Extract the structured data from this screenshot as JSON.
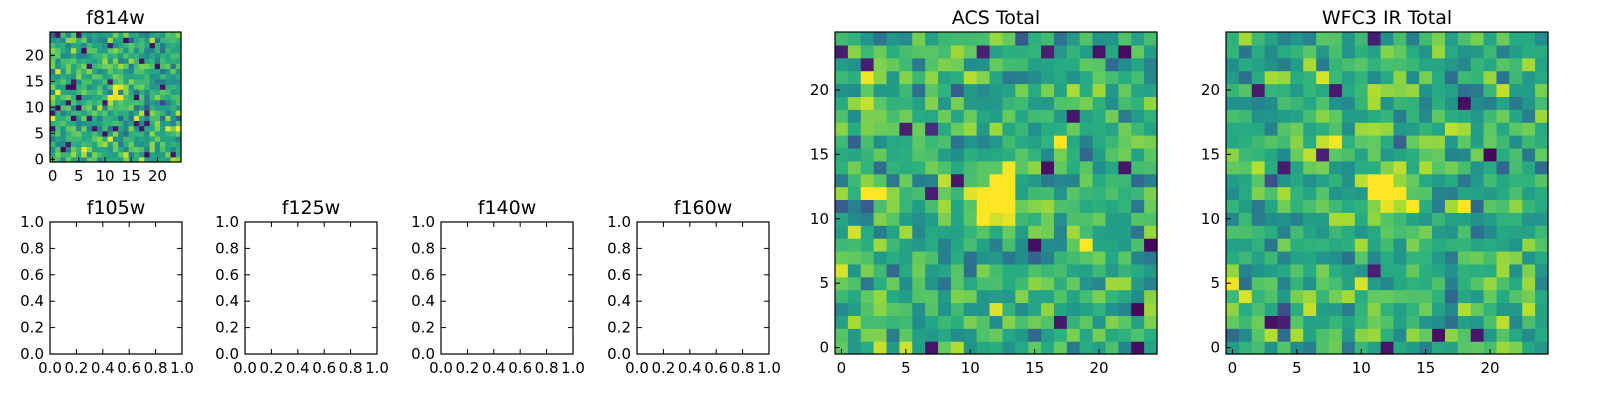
{
  "colors": {
    "background": "#ffffff",
    "axes": "#000000",
    "colormap": [
      "#440154",
      "#3b528b",
      "#21918c",
      "#5ec962",
      "#fde725"
    ]
  },
  "chart_data": [
    {
      "id": "f814w",
      "type": "heatmap",
      "title": "f814w",
      "colormap": "viridis",
      "grid": false,
      "xlim": [
        -0.5,
        24.5
      ],
      "ylim": [
        -0.5,
        24.5
      ],
      "xticks": [
        0,
        5,
        10,
        15,
        20
      ],
      "yticks": [
        0,
        5,
        10,
        15,
        20
      ],
      "size": [
        25,
        25
      ],
      "description": "noise image with bright compact source centered near (12, 12)"
    },
    {
      "id": "f105w",
      "type": "empty",
      "title": "f105w",
      "xlim": [
        0,
        1
      ],
      "ylim": [
        0,
        1
      ],
      "xticks": [
        "0.0",
        "0.2",
        "0.4",
        "0.6",
        "0.8",
        "1.0"
      ],
      "yticks": [
        "0.0",
        "0.2",
        "0.4",
        "0.6",
        "0.8",
        "1.0"
      ]
    },
    {
      "id": "f125w",
      "type": "empty",
      "title": "f125w",
      "xlim": [
        0,
        1
      ],
      "ylim": [
        0,
        1
      ],
      "xticks": [
        "0.0",
        "0.2",
        "0.4",
        "0.6",
        "0.8",
        "1.0"
      ],
      "yticks": [
        "0.0",
        "0.2",
        "0.4",
        "0.6",
        "0.8",
        "1.0"
      ]
    },
    {
      "id": "f140w",
      "type": "empty",
      "title": "f140w",
      "xlim": [
        0,
        1
      ],
      "ylim": [
        0,
        1
      ],
      "xticks": [
        "0.0",
        "0.2",
        "0.4",
        "0.6",
        "0.8",
        "1.0"
      ],
      "yticks": [
        "0.0",
        "0.2",
        "0.4",
        "0.6",
        "0.8",
        "1.0"
      ]
    },
    {
      "id": "f160w",
      "type": "empty",
      "title": "f160w",
      "xlim": [
        0,
        1
      ],
      "ylim": [
        0,
        1
      ],
      "xticks": [
        "0.0",
        "0.2",
        "0.4",
        "0.6",
        "0.8",
        "1.0"
      ],
      "yticks": [
        "0.0",
        "0.2",
        "0.4",
        "0.6",
        "0.8",
        "1.0"
      ]
    },
    {
      "id": "acs",
      "type": "heatmap",
      "title": "ACS Total",
      "colormap": "viridis",
      "grid": false,
      "xlim": [
        -0.5,
        24.5
      ],
      "ylim": [
        -0.5,
        24.5
      ],
      "xticks": [
        0,
        5,
        10,
        15,
        20
      ],
      "yticks": [
        0,
        5,
        10,
        15,
        20
      ],
      "size": [
        25,
        25
      ],
      "description": "noise image with bright source at x 11-13, y 11-13"
    },
    {
      "id": "wfc3",
      "type": "heatmap",
      "title": "WFC3 IR Total",
      "colormap": "viridis",
      "grid": false,
      "xlim": [
        -0.5,
        24.5
      ],
      "ylim": [
        -0.5,
        24.5
      ],
      "xticks": [
        0,
        5,
        10,
        15,
        20
      ],
      "yticks": [
        0,
        5,
        10,
        15,
        20
      ],
      "size": [
        25,
        25
      ],
      "description": "noise image with bright source at x 11-13, y 12-13"
    }
  ]
}
